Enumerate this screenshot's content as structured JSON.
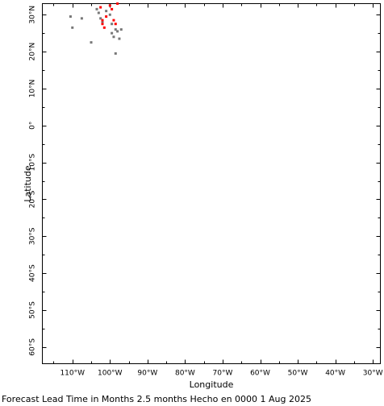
{
  "chart_data": {
    "type": "scatter",
    "xlabel": "Longitude",
    "ylabel": "Latitude",
    "xlim": [
      -118,
      -28
    ],
    "ylim": [
      -64.5,
      33
    ],
    "x_ticks": [
      {
        "value": -110,
        "label": "110°W"
      },
      {
        "value": -100,
        "label": "100°W"
      },
      {
        "value": -90,
        "label": "90°W"
      },
      {
        "value": -80,
        "label": "80°W"
      },
      {
        "value": -70,
        "label": "70°W"
      },
      {
        "value": -60,
        "label": "60°W"
      },
      {
        "value": -50,
        "label": "50°W"
      },
      {
        "value": -40,
        "label": "40°W"
      },
      {
        "value": -30,
        "label": "30°W"
      }
    ],
    "y_ticks": [
      {
        "value": 30,
        "label": "30°N"
      },
      {
        "value": 20,
        "label": "20°N"
      },
      {
        "value": 10,
        "label": "10°N"
      },
      {
        "value": 0,
        "label": "0°"
      },
      {
        "value": -10,
        "label": "10°S"
      },
      {
        "value": -20,
        "label": "20°S"
      },
      {
        "value": -30,
        "label": "30°S"
      },
      {
        "value": -40,
        "label": "40°S"
      },
      {
        "value": -50,
        "label": "50°S"
      },
      {
        "value": -60,
        "label": "60°S"
      }
    ],
    "grid": false,
    "series": [
      {
        "color": "#777777",
        "points": [
          [
            -110.5,
            29.5
          ],
          [
            -110,
            26.5
          ],
          [
            -107.5,
            29
          ],
          [
            -105,
            22.5
          ],
          [
            -103.5,
            31.5
          ],
          [
            -103,
            30.5
          ],
          [
            -102.5,
            29
          ],
          [
            -102,
            28
          ],
          [
            -101,
            31
          ],
          [
            -100,
            30
          ],
          [
            -99.5,
            27.5
          ],
          [
            -99.5,
            25
          ],
          [
            -99,
            24
          ],
          [
            -98.5,
            26
          ],
          [
            -98.5,
            19.5
          ],
          [
            -98,
            25.5
          ],
          [
            -97.5,
            23.5
          ],
          [
            -97,
            26
          ]
        ]
      },
      {
        "color": "#ff0000",
        "points": [
          [
            -102.5,
            32
          ],
          [
            -102,
            28.5
          ],
          [
            -102,
            27.5
          ],
          [
            -101.5,
            26.5
          ],
          [
            -101,
            29.5
          ],
          [
            -100,
            32.5
          ],
          [
            -99.5,
            31.5
          ],
          [
            -99,
            28.5
          ],
          [
            -98.5,
            27.5
          ],
          [
            -98,
            33
          ]
        ]
      }
    ],
    "footer": "Forecast Lead Time in Months 2.5 months Hecho en 0000 1 Aug 2025"
  }
}
